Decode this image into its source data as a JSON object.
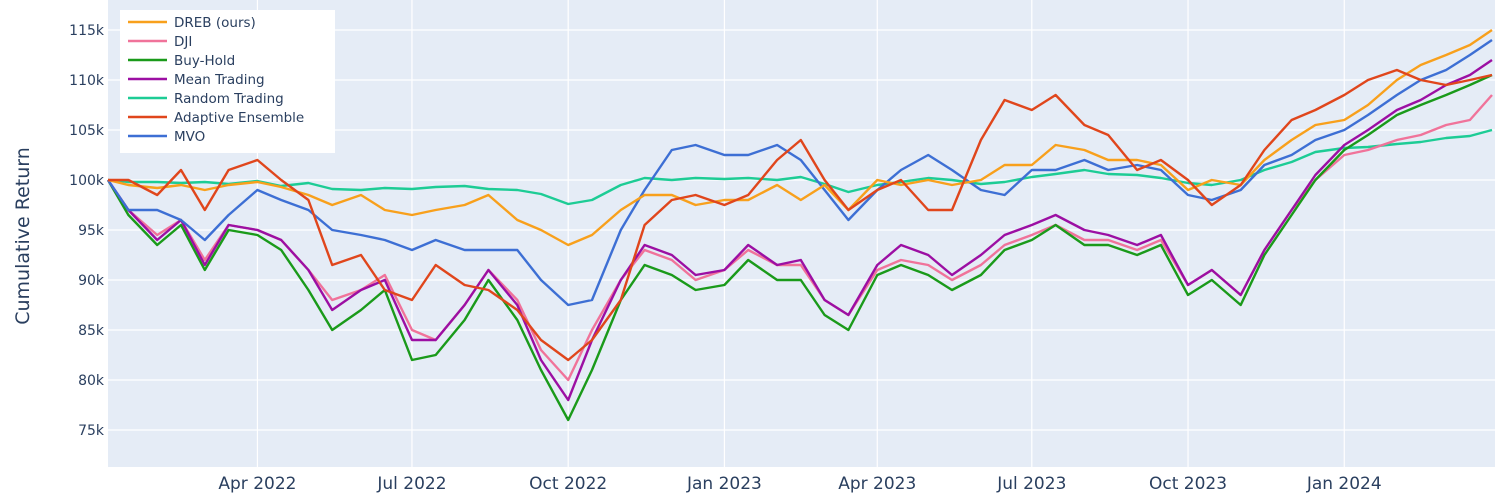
{
  "chart_data": {
    "type": "line",
    "title": "",
    "xlabel": "",
    "ylabel": "Cumulative Return",
    "ylim": [
      72000,
      117000
    ],
    "xlim": [
      "2022-01-03",
      "2024-03-28"
    ],
    "grid": true,
    "legend_position": "top-left",
    "y_ticks": [
      {
        "value": 75000,
        "label": "75k"
      },
      {
        "value": 80000,
        "label": "80k"
      },
      {
        "value": 85000,
        "label": "85k"
      },
      {
        "value": 90000,
        "label": "90k"
      },
      {
        "value": 95000,
        "label": "95k"
      },
      {
        "value": 100000,
        "label": "100k"
      },
      {
        "value": 105000,
        "label": "105k"
      },
      {
        "value": 110000,
        "label": "110k"
      },
      {
        "value": 115000,
        "label": "115k"
      }
    ],
    "x_ticks": [
      {
        "value": "2022-04-01",
        "label": "Apr 2022"
      },
      {
        "value": "2022-07-01",
        "label": "Jul 2022"
      },
      {
        "value": "2022-10-01",
        "label": "Oct 2022"
      },
      {
        "value": "2023-01-01",
        "label": "Jan 2023"
      },
      {
        "value": "2023-04-01",
        "label": "Apr 2023"
      },
      {
        "value": "2023-07-01",
        "label": "Jul 2023"
      },
      {
        "value": "2023-10-01",
        "label": "Oct 2023"
      },
      {
        "value": "2024-01-01",
        "label": "Jan 2024"
      }
    ],
    "x": [
      "2022-01-03",
      "2022-01-15",
      "2022-02-01",
      "2022-02-15",
      "2022-03-01",
      "2022-03-15",
      "2022-04-01",
      "2022-04-15",
      "2022-05-01",
      "2022-05-15",
      "2022-06-01",
      "2022-06-15",
      "2022-07-01",
      "2022-07-15",
      "2022-08-01",
      "2022-08-15",
      "2022-09-01",
      "2022-09-15",
      "2022-10-01",
      "2022-10-15",
      "2022-11-01",
      "2022-11-15",
      "2022-12-01",
      "2022-12-15",
      "2023-01-01",
      "2023-01-15",
      "2023-02-01",
      "2023-02-15",
      "2023-03-01",
      "2023-03-15",
      "2023-04-01",
      "2023-04-15",
      "2023-05-01",
      "2023-05-15",
      "2023-06-01",
      "2023-06-15",
      "2023-07-01",
      "2023-07-15",
      "2023-08-01",
      "2023-08-15",
      "2023-09-01",
      "2023-09-15",
      "2023-10-01",
      "2023-10-15",
      "2023-11-01",
      "2023-11-15",
      "2023-12-01",
      "2023-12-15",
      "2024-01-01",
      "2024-01-15",
      "2024-02-01",
      "2024-02-15",
      "2024-03-01",
      "2024-03-15",
      "2024-03-28"
    ],
    "series": [
      {
        "name": "DREB (ours)",
        "color": "#f8a01c",
        "values": [
          100,
          99.5,
          99.2,
          99.5,
          99,
          99.5,
          99.8,
          99.3,
          98.5,
          97.5,
          98.5,
          97,
          96.5,
          97,
          97.5,
          98.5,
          96,
          95,
          93.5,
          94.5,
          97,
          98.5,
          98.5,
          97.5,
          98,
          98,
          99.5,
          98,
          99.5,
          97,
          100,
          99.5,
          100,
          99.5,
          100,
          101.5,
          101.5,
          103.5,
          103,
          102,
          102,
          101.5,
          99,
          100,
          99.5,
          102,
          104,
          105.5,
          106,
          107.5,
          110,
          111.5,
          112.5,
          113.5,
          115
        ]
      },
      {
        "name": "DJI",
        "color": "#f0739a",
        "values": [
          100,
          97,
          94.5,
          96,
          92,
          95.5,
          95,
          94,
          91,
          88,
          89,
          90.5,
          85,
          84,
          87.5,
          91,
          88,
          83,
          80,
          85,
          90,
          93,
          92,
          90,
          91,
          93,
          91.5,
          91.5,
          88,
          86.5,
          91,
          92,
          91.5,
          90,
          91.5,
          93.5,
          94.5,
          95.5,
          94,
          94,
          93,
          94,
          89.5,
          91,
          88.5,
          93,
          97,
          100,
          102.5,
          103,
          104,
          104.5,
          105.5,
          106,
          108.5
        ]
      },
      {
        "name": "Buy-Hold",
        "color": "#1a9a1a",
        "values": [
          100,
          96.5,
          93.5,
          95.5,
          91,
          95,
          94.5,
          93,
          89,
          85,
          87,
          89,
          82,
          82.5,
          86,
          90,
          86,
          81,
          76,
          81,
          88,
          91.5,
          90.5,
          89,
          89.5,
          92,
          90,
          90,
          86.5,
          85,
          90.5,
          91.5,
          90.5,
          89,
          90.5,
          93,
          94,
          95.5,
          93.5,
          93.5,
          92.5,
          93.5,
          88.5,
          90,
          87.5,
          92.5,
          96.5,
          100,
          103,
          104.5,
          106.5,
          107.5,
          108.5,
          109.5,
          110.5
        ]
      },
      {
        "name": "Mean Trading",
        "color": "#9c0fa3",
        "values": [
          100,
          97,
          94,
          96,
          91.5,
          95.5,
          95,
          94,
          91,
          87,
          89,
          90,
          84,
          84,
          87.5,
          91,
          87.5,
          82,
          78,
          84,
          90,
          93.5,
          92.5,
          90.5,
          91,
          93.5,
          91.5,
          92,
          88,
          86.5,
          91.5,
          93.5,
          92.5,
          90.5,
          92.5,
          94.5,
          95.5,
          96.5,
          95,
          94.5,
          93.5,
          94.5,
          89.5,
          91,
          88.5,
          93,
          97,
          100.5,
          103.5,
          105,
          107,
          108,
          109.5,
          110.5,
          112
        ]
      },
      {
        "name": "Random Trading",
        "color": "#1dcc95",
        "values": [
          100,
          99.8,
          99.8,
          99.7,
          99.8,
          99.6,
          99.9,
          99.4,
          99.7,
          99.1,
          99,
          99.2,
          99.1,
          99.3,
          99.4,
          99.1,
          99,
          98.6,
          97.6,
          98,
          99.5,
          100.2,
          100,
          100.2,
          100.1,
          100.2,
          100,
          100.3,
          99.6,
          98.8,
          99.5,
          99.8,
          100.2,
          100,
          99.6,
          99.8,
          100.3,
          100.6,
          101,
          100.6,
          100.5,
          100.2,
          99.7,
          99.5,
          100,
          101,
          101.8,
          102.8,
          103.2,
          103.3,
          103.6,
          103.8,
          104.2,
          104.4,
          105
        ]
      },
      {
        "name": "Adaptive Ensemble",
        "color": "#e0461c",
        "values": [
          100,
          100,
          98.5,
          101,
          97,
          101,
          102,
          100,
          98,
          91.5,
          92.5,
          89,
          88,
          91.5,
          89.5,
          89,
          87,
          84,
          82,
          84,
          88,
          95.5,
          98,
          98.5,
          97.5,
          98.5,
          102,
          104,
          100,
          97,
          99,
          100,
          97,
          97,
          104,
          108,
          107,
          108.5,
          105.5,
          104.5,
          101,
          102,
          100,
          97.5,
          99.5,
          103,
          106,
          107,
          108.5,
          110,
          111,
          110,
          109.5,
          110,
          110.5
        ]
      },
      {
        "name": "MVO",
        "color": "#3d6fd4",
        "values": [
          100,
          97,
          97,
          96,
          94,
          96.5,
          99,
          98,
          97,
          95,
          94.5,
          94,
          93,
          94,
          93,
          93,
          93,
          90,
          87.5,
          88,
          95,
          99,
          103,
          103.5,
          102.5,
          102.5,
          103.5,
          102,
          99,
          96,
          99,
          101,
          102.5,
          101,
          99,
          98.5,
          101,
          101,
          102,
          101,
          101.5,
          101,
          98.5,
          98,
          99,
          101.5,
          102.5,
          104,
          105,
          106.5,
          108.5,
          110,
          111,
          112.5,
          114
        ]
      }
    ],
    "value_unit_note": "values in thousands"
  }
}
